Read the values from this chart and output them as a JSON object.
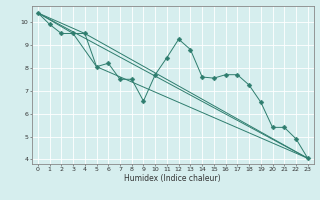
{
  "title": "",
  "xlabel": "Humidex (Indice chaleur)",
  "ylabel": "",
  "background_color": "#d6eeee",
  "grid_color": "#ffffff",
  "line_color": "#2e7d6e",
  "xlim": [
    -0.5,
    23.5
  ],
  "ylim": [
    3.8,
    10.7
  ],
  "xticks": [
    0,
    1,
    2,
    3,
    4,
    5,
    6,
    7,
    8,
    9,
    10,
    11,
    12,
    13,
    14,
    15,
    16,
    17,
    18,
    19,
    20,
    21,
    22,
    23
  ],
  "yticks": [
    4,
    5,
    6,
    7,
    8,
    9,
    10
  ],
  "series": [
    {
      "x": [
        0,
        1,
        2,
        3,
        4,
        5,
        6,
        7,
        8,
        9,
        10,
        11,
        12,
        13,
        14,
        15,
        16,
        17,
        18,
        19,
        20,
        21,
        22,
        23
      ],
      "y": [
        10.4,
        9.9,
        9.5,
        9.5,
        9.5,
        8.05,
        8.2,
        7.5,
        7.5,
        6.55,
        7.7,
        8.45,
        9.25,
        8.8,
        7.6,
        7.55,
        7.7,
        7.7,
        7.25,
        6.5,
        5.4,
        5.4,
        4.9,
        4.05
      ],
      "marker": "D",
      "markersize": 2.5
    },
    {
      "x": [
        0,
        3,
        5,
        23
      ],
      "y": [
        10.4,
        9.5,
        8.05,
        4.05
      ],
      "marker": null
    },
    {
      "x": [
        0,
        23
      ],
      "y": [
        10.4,
        4.05
      ],
      "marker": null
    },
    {
      "x": [
        0,
        4,
        23
      ],
      "y": [
        10.4,
        9.5,
        4.05
      ],
      "marker": null
    }
  ]
}
